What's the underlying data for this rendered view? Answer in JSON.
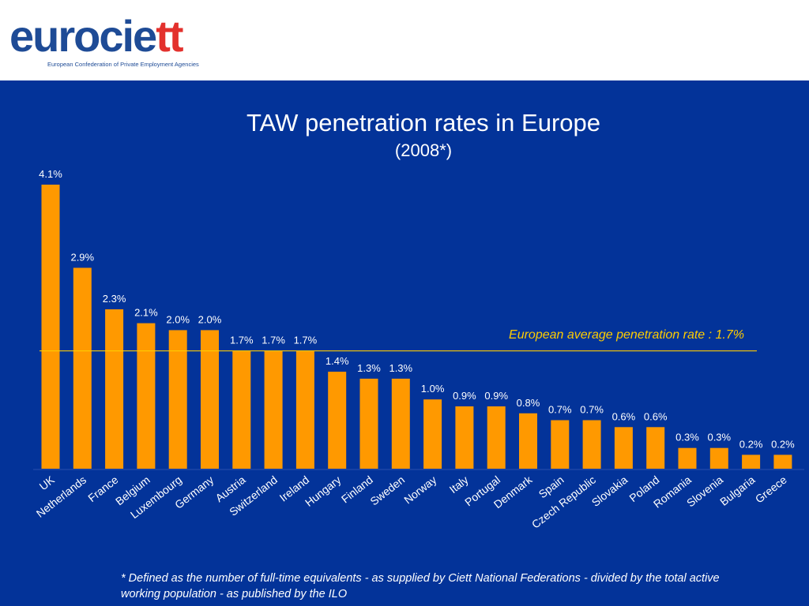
{
  "brand": {
    "logo_part1": "eurocie",
    "logo_part2": "tt",
    "tagline": "European Confederation of Private Employment Agencies"
  },
  "slide": {
    "title": "TAW penetration rates in Europe",
    "subtitle": "(2008*)",
    "average_label": "European average penetration rate : 1.7%",
    "footnote": "* Defined as the number of full-time equivalents - as supplied by Ciett National Federations - divided by the total active working population - as published by the ILO"
  },
  "colors": {
    "background": "#033399",
    "bar": "#ff9900",
    "average_line": "#ffcc00",
    "text": "#ffffff"
  },
  "chart_data": {
    "type": "bar",
    "title": "TAW penetration rates in Europe",
    "subtitle": "(2008*)",
    "categories": [
      "UK",
      "Netherlands",
      "France",
      "Belgium",
      "Luxembourg",
      "Germany",
      "Austria",
      "Switzerland",
      "Ireland",
      "Hungary",
      "Finland",
      "Sweden",
      "Norway",
      "Italy",
      "Portugal",
      "Denmark",
      "Spain",
      "Czech Republic",
      "Slovakia",
      "Poland",
      "Romania",
      "Slovenia",
      "Bulgaria",
      "Greece"
    ],
    "values": [
      4.1,
      2.9,
      2.3,
      2.1,
      2.0,
      2.0,
      1.7,
      1.7,
      1.7,
      1.4,
      1.3,
      1.3,
      1.0,
      0.9,
      0.9,
      0.8,
      0.7,
      0.7,
      0.6,
      0.6,
      0.3,
      0.3,
      0.2,
      0.2
    ],
    "value_labels": [
      "4.1%",
      "2.9%",
      "2.3%",
      "2.1%",
      "2.0%",
      "2.0%",
      "1.7%",
      "1.7%",
      "1.7%",
      "1.4%",
      "1.3%",
      "1.3%",
      "1.0%",
      "0.9%",
      "0.9%",
      "0.8%",
      "0.7%",
      "0.7%",
      "0.6%",
      "0.6%",
      "0.3%",
      "0.3%",
      "0.2%",
      "0.2%"
    ],
    "reference_line": {
      "value": 1.7,
      "label": "European average penetration rate : 1.7%"
    },
    "xlabel": "",
    "ylabel": "",
    "ylim": [
      0,
      4.1
    ],
    "grid": false,
    "legend": "none"
  }
}
